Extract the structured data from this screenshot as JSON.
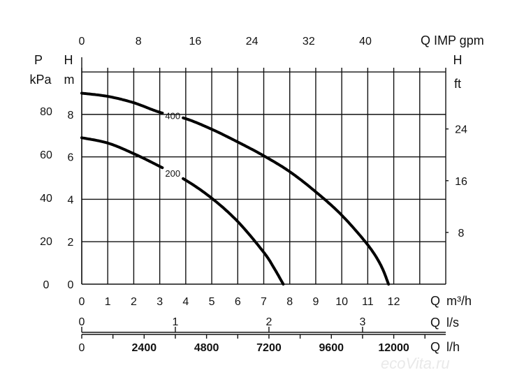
{
  "chart_data": {
    "type": "line",
    "title": "",
    "x": {
      "label": "Q m³/h",
      "label_q": "Q",
      "label_unit": "m³/h",
      "range": [
        0,
        14
      ],
      "ticks": [
        0,
        1,
        2,
        3,
        4,
        5,
        6,
        7,
        8,
        9,
        10,
        11,
        12
      ]
    },
    "x_top": {
      "label": "Q IMP gpm",
      "ticks": [
        0,
        8,
        16,
        24,
        32,
        40
      ]
    },
    "x_ls": {
      "label": "Q l/s",
      "label_q": "Q",
      "label_unit": "l/s",
      "ticks": [
        0,
        1,
        2,
        3
      ]
    },
    "x_lh": {
      "label": "Q l/h",
      "label_q": "Q",
      "label_unit": "l/h",
      "ticks": [
        0,
        2400,
        4800,
        7200,
        9600,
        12000
      ]
    },
    "y_left": {
      "label_p": "P",
      "label_kpa": "kPa",
      "ticks": [
        0,
        20,
        40,
        60,
        80
      ]
    },
    "y_m": {
      "label_h": "H",
      "label_m": "m",
      "range": [
        0,
        10.2
      ],
      "ticks": [
        0,
        2,
        4,
        6,
        8
      ]
    },
    "y_right": {
      "label_h": "H",
      "label_ft": "ft",
      "ticks": [
        8,
        16,
        24
      ]
    },
    "grid": true,
    "series": [
      {
        "name": "400",
        "x": [
          0,
          1,
          2,
          3,
          4,
          5,
          6,
          7,
          8,
          9,
          10,
          11,
          11.5,
          11.8
        ],
        "y": [
          9.0,
          8.85,
          8.55,
          8.1,
          7.8,
          7.3,
          6.7,
          6.05,
          5.3,
          4.35,
          3.25,
          1.85,
          0.9,
          0
        ]
      },
      {
        "name": "200",
        "x": [
          0,
          1,
          2,
          3,
          4,
          5,
          6,
          7,
          7.4,
          7.75
        ],
        "y": [
          6.9,
          6.65,
          6.15,
          5.55,
          4.9,
          4.05,
          2.95,
          1.5,
          0.75,
          0
        ]
      }
    ]
  },
  "watermark": "ecoVita.ru"
}
